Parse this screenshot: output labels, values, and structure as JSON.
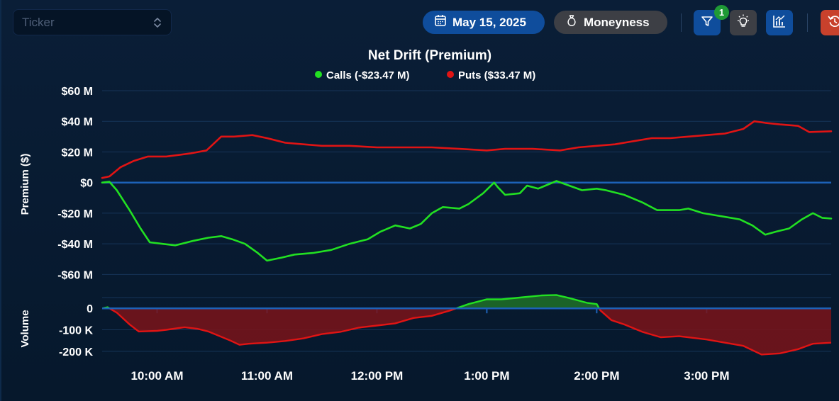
{
  "toolbar": {
    "ticker_placeholder": "Ticker",
    "date": "May 15, 2025",
    "moneyness_label": "Moneyness",
    "filter_count": "1",
    "icons": [
      "calendar-icon",
      "money-bag-icon",
      "filter-icon",
      "lightbulb-icon",
      "chart-icon",
      "reset-icon"
    ]
  },
  "chart_data": [
    {
      "type": "line",
      "title": "Net Drift (Premium)",
      "ylabel": "Premium ($)",
      "ylim": [
        -70,
        60
      ],
      "yticks": [
        60,
        40,
        20,
        0,
        -20,
        -40,
        -60
      ],
      "ytick_labels": [
        "$60 M",
        "$40 M",
        "$20 M",
        "$0",
        "-$20 M",
        "-$40 M",
        "-$60 M"
      ],
      "grid": true,
      "legend": "top-center",
      "x_unit": "time",
      "series": [
        {
          "name": "Calls (-$23.47 M)",
          "color": "#22e022",
          "points": [
            [
              "9:30",
              0
            ],
            [
              "9:34",
              0.5
            ],
            [
              "9:38",
              -5
            ],
            [
              "9:45",
              -18
            ],
            [
              "9:51",
              -30
            ],
            [
              "9:56",
              -39
            ],
            [
              "10:03",
              -40
            ],
            [
              "10:10",
              -41
            ],
            [
              "10:20",
              -38
            ],
            [
              "10:28",
              -36
            ],
            [
              "10:35",
              -35
            ],
            [
              "10:41",
              -37
            ],
            [
              "10:48",
              -40
            ],
            [
              "10:55",
              -46
            ],
            [
              "11:00",
              -51
            ],
            [
              "11:08",
              -49
            ],
            [
              "11:15",
              -47
            ],
            [
              "11:25",
              -46
            ],
            [
              "11:35",
              -44
            ],
            [
              "11:45",
              -40
            ],
            [
              "11:55",
              -37
            ],
            [
              "12:02",
              -32
            ],
            [
              "12:10",
              -28
            ],
            [
              "12:18",
              -30
            ],
            [
              "12:24",
              -27
            ],
            [
              "12:30",
              -20
            ],
            [
              "12:36",
              -16
            ],
            [
              "12:45",
              -17
            ],
            [
              "12:50",
              -14
            ],
            [
              "12:58",
              -7
            ],
            [
              "13:04",
              0
            ],
            [
              "13:06",
              -3
            ],
            [
              "13:10",
              -8
            ],
            [
              "13:18",
              -7
            ],
            [
              "13:22",
              -2
            ],
            [
              "13:28",
              -4
            ],
            [
              "13:38",
              1
            ],
            [
              "13:45",
              -2
            ],
            [
              "13:52",
              -5
            ],
            [
              "14:00",
              -4
            ],
            [
              "14:05",
              -5
            ],
            [
              "14:15",
              -8
            ],
            [
              "14:25",
              -13
            ],
            [
              "14:33",
              -18
            ],
            [
              "14:45",
              -18
            ],
            [
              "14:50",
              -17
            ],
            [
              "14:58",
              -20
            ],
            [
              "15:08",
              -22
            ],
            [
              "15:18",
              -24
            ],
            [
              "15:25",
              -28
            ],
            [
              "15:32",
              -34
            ],
            [
              "15:38",
              -32
            ],
            [
              "15:45",
              -30
            ],
            [
              "15:52",
              -24
            ],
            [
              "15:58",
              -20
            ],
            [
              "16:03",
              -23
            ],
            [
              "16:08",
              -23.5
            ]
          ]
        },
        {
          "name": "Puts ($33.47 M)",
          "color": "#e01414",
          "points": [
            [
              "9:30",
              3
            ],
            [
              "9:34",
              4
            ],
            [
              "9:40",
              10
            ],
            [
              "9:47",
              14
            ],
            [
              "9:55",
              17
            ],
            [
              "10:05",
              17
            ],
            [
              "10:18",
              19
            ],
            [
              "10:27",
              21
            ],
            [
              "10:35",
              30
            ],
            [
              "10:42",
              30
            ],
            [
              "10:52",
              31
            ],
            [
              "11:00",
              29
            ],
            [
              "11:10",
              26
            ],
            [
              "11:20",
              25
            ],
            [
              "11:30",
              24
            ],
            [
              "11:45",
              24
            ],
            [
              "12:00",
              23
            ],
            [
              "12:15",
              23
            ],
            [
              "12:30",
              23
            ],
            [
              "12:45",
              22
            ],
            [
              "13:00",
              21
            ],
            [
              "13:10",
              22
            ],
            [
              "13:25",
              22
            ],
            [
              "13:40",
              21
            ],
            [
              "13:50",
              23
            ],
            [
              "14:00",
              24
            ],
            [
              "14:10",
              25
            ],
            [
              "14:20",
              27
            ],
            [
              "14:30",
              29
            ],
            [
              "14:40",
              29
            ],
            [
              "14:50",
              30
            ],
            [
              "15:00",
              31
            ],
            [
              "15:10",
              32
            ],
            [
              "15:20",
              35
            ],
            [
              "15:26",
              40
            ],
            [
              "15:32",
              39
            ],
            [
              "15:40",
              38
            ],
            [
              "15:50",
              37
            ],
            [
              "15:56",
              33
            ],
            [
              "16:08",
              33.5
            ]
          ]
        }
      ]
    },
    {
      "type": "area",
      "ylabel": "Volume",
      "ylim": [
        -260,
        70
      ],
      "yticks": [
        0,
        -100,
        -200
      ],
      "ytick_labels": [
        "0",
        "-100 K",
        "-200 K"
      ],
      "xlim": [
        "9:30",
        "16:08"
      ],
      "xticks": [
        "10:00",
        "11:00",
        "12:00",
        "13:00",
        "14:00",
        "15:00"
      ],
      "xtick_labels": [
        "10:00 AM",
        "11:00 AM",
        "12:00 PM",
        "1:00 PM",
        "2:00 PM",
        "3:00 PM"
      ],
      "positive_color": "#1e6b28",
      "negative_color": "#7a1419",
      "series": [
        {
          "points": [
            [
              "9:30",
              0
            ],
            [
              "9:33",
              5
            ],
            [
              "9:38",
              -20
            ],
            [
              "9:45",
              -75
            ],
            [
              "9:50",
              -108
            ],
            [
              "10:00",
              -105
            ],
            [
              "10:05",
              -100
            ],
            [
              "10:15",
              -88
            ],
            [
              "10:22",
              -95
            ],
            [
              "10:28",
              -108
            ],
            [
              "10:40",
              -150
            ],
            [
              "10:45",
              -170
            ],
            [
              "10:50",
              -165
            ],
            [
              "11:00",
              -160
            ],
            [
              "11:10",
              -152
            ],
            [
              "11:20",
              -140
            ],
            [
              "11:30",
              -120
            ],
            [
              "11:40",
              -110
            ],
            [
              "11:50",
              -90
            ],
            [
              "12:00",
              -80
            ],
            [
              "12:10",
              -70
            ],
            [
              "12:20",
              -45
            ],
            [
              "12:30",
              -35
            ],
            [
              "12:40",
              -10
            ],
            [
              "12:50",
              20
            ],
            [
              "13:00",
              42
            ],
            [
              "13:08",
              42
            ],
            [
              "13:20",
              52
            ],
            [
              "13:30",
              60
            ],
            [
              "13:38",
              62
            ],
            [
              "13:45",
              48
            ],
            [
              "13:55",
              25
            ],
            [
              "14:00",
              20
            ],
            [
              "14:02",
              -10
            ],
            [
              "14:08",
              -55
            ],
            [
              "14:15",
              -75
            ],
            [
              "14:25",
              -110
            ],
            [
              "14:35",
              -135
            ],
            [
              "14:45",
              -130
            ],
            [
              "15:00",
              -145
            ],
            [
              "15:10",
              -160
            ],
            [
              "15:20",
              -175
            ],
            [
              "15:30",
              -215
            ],
            [
              "15:40",
              -210
            ],
            [
              "15:50",
              -190
            ],
            [
              "15:58",
              -165
            ],
            [
              "16:08",
              -160
            ]
          ]
        }
      ]
    }
  ]
}
